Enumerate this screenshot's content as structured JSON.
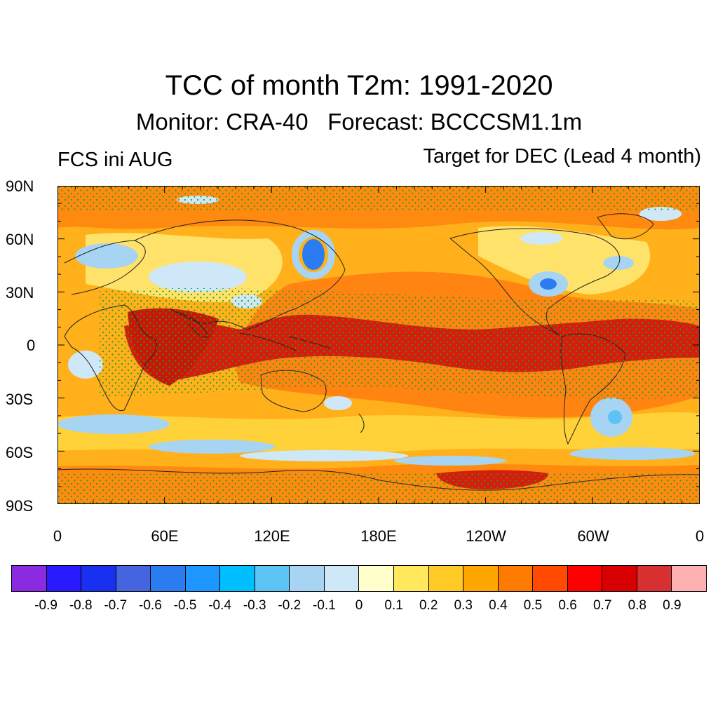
{
  "header": {
    "title": "TCC of month T2m: 1991-2020",
    "subtitle": "Monitor: CRA-40   Forecast: BCCCSM1.1m",
    "left_label": "FCS ini AUG",
    "right_label": "Target for DEC (Lead 4 month)"
  },
  "axes": {
    "y_ticks": [
      "90N",
      "60N",
      "30N",
      "0",
      "30S",
      "60S",
      "90S"
    ],
    "x_ticks": [
      "0",
      "60E",
      "120E",
      "180E",
      "120W",
      "60W",
      "0"
    ]
  },
  "colorbar": {
    "colors": [
      "#8a2be2",
      "#2a1aff",
      "#1a30f0",
      "#4464e0",
      "#2a7cf0",
      "#1e96ff",
      "#00bfff",
      "#5cc4f5",
      "#a6d4f2",
      "#cfe8f8",
      "#ffffcc",
      "#ffe85c",
      "#ffc926",
      "#ffa600",
      "#ff7a00",
      "#ff4a00",
      "#ff0000",
      "#d80000",
      "#d63030",
      "#ffb0b0"
    ],
    "labels": [
      "-0.9",
      "-0.8",
      "-0.7",
      "-0.6",
      "-0.5",
      "-0.4",
      "-0.3",
      "-0.2",
      "-0.1",
      "0",
      "0.1",
      "0.2",
      "0.3",
      "0.4",
      "0.5",
      "0.6",
      "0.7",
      "0.8",
      "0.9"
    ]
  }
}
